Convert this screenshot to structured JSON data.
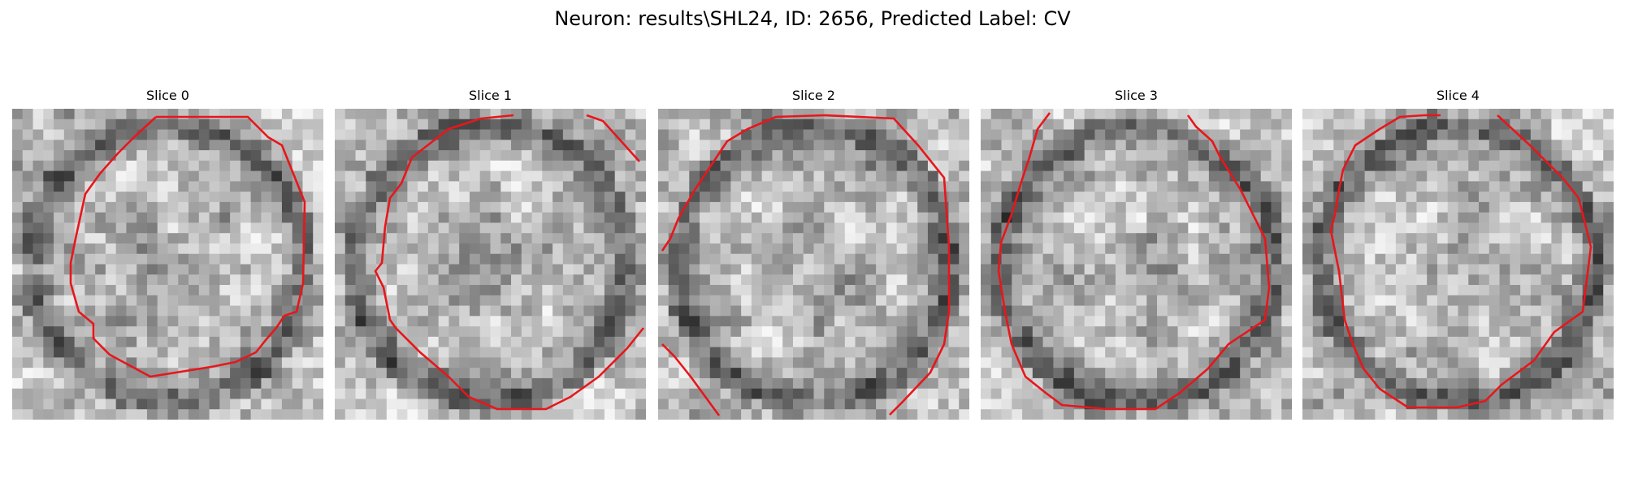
{
  "figure": {
    "title": "Neuron: results\\SHL24, ID: 2656, Predicted Label: CV",
    "panels": [
      {
        "title": "Slice 0",
        "background": "grayscale microscopy patch",
        "contour_color": "#e8161b"
      },
      {
        "title": "Slice 1",
        "background": "grayscale microscopy patch",
        "contour_color": "#e8161b"
      },
      {
        "title": "Slice 2",
        "background": "grayscale microscopy patch",
        "contour_color": "#e8161b"
      },
      {
        "title": "Slice 3",
        "background": "grayscale microscopy patch",
        "contour_color": "#e8161b"
      },
      {
        "title": "Slice 4",
        "background": "grayscale microscopy patch",
        "contour_color": "#e8161b"
      }
    ]
  }
}
